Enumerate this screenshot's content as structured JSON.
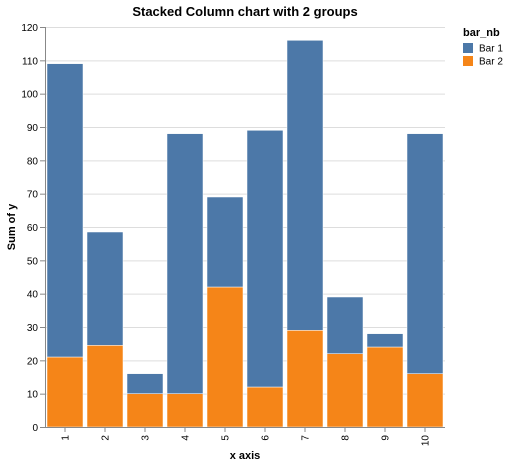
{
  "chart_data": {
    "type": "bar",
    "stacked": true,
    "title": "Stacked Column chart with 2 groups",
    "xlabel": "x axis",
    "ylabel": "Sum of y",
    "categories": [
      "1",
      "2",
      "3",
      "4",
      "5",
      "6",
      "7",
      "8",
      "9",
      "10"
    ],
    "ylim": [
      0,
      120
    ],
    "yticks": [
      0,
      10,
      20,
      30,
      40,
      50,
      60,
      70,
      80,
      90,
      100,
      110,
      120
    ],
    "grid": true,
    "legend": {
      "title": "bar_nb",
      "position": "top-right"
    },
    "series": [
      {
        "name": "Bar 1",
        "color": "#4c78a8",
        "values": [
          88,
          34,
          6,
          78,
          27,
          77,
          87,
          17,
          4,
          72
        ]
      },
      {
        "name": "Bar 2",
        "color": "#f58518",
        "values": [
          21,
          24.5,
          10,
          10,
          42,
          12,
          29,
          22,
          24,
          16
        ]
      }
    ]
  }
}
